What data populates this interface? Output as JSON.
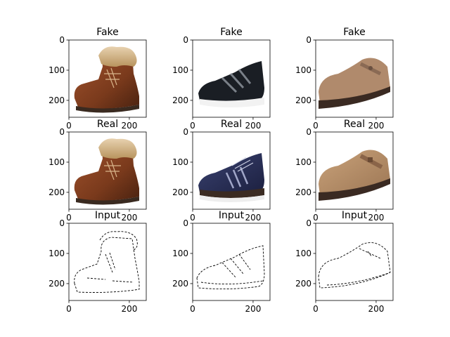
{
  "chart_data": [
    {
      "type": "image",
      "title": "Fake",
      "subject": "brown leather boot with fur collar",
      "xticks": [
        0,
        200
      ],
      "yticks": [
        0,
        100,
        200
      ],
      "xlim": [
        0,
        256
      ],
      "ylim": [
        256,
        0
      ]
    },
    {
      "type": "image",
      "title": "Fake",
      "subject": "black athletic sneaker",
      "xticks": [
        0,
        200
      ],
      "yticks": [
        0,
        100,
        200
      ],
      "xlim": [
        0,
        256
      ],
      "ylim": [
        256,
        0
      ]
    },
    {
      "type": "image",
      "title": "Fake",
      "subject": "tan clog with buckle strap",
      "xticks": [
        0,
        200
      ],
      "yticks": [
        0,
        100,
        200
      ],
      "xlim": [
        0,
        256
      ],
      "ylim": [
        256,
        0
      ]
    },
    {
      "type": "image",
      "title": "Real",
      "subject": "brown leather boot with fur collar",
      "xticks": [
        0,
        200
      ],
      "yticks": [
        0,
        100,
        200
      ],
      "xlim": [
        0,
        256
      ],
      "ylim": [
        256,
        0
      ]
    },
    {
      "type": "image",
      "title": "Real",
      "subject": "navy athletic sneaker",
      "xticks": [
        0,
        200
      ],
      "yticks": [
        0,
        100,
        200
      ],
      "xlim": [
        0,
        256
      ],
      "ylim": [
        256,
        0
      ]
    },
    {
      "type": "image",
      "title": "Real",
      "subject": "tan suede clog with buckle strap",
      "xticks": [
        0,
        200
      ],
      "yticks": [
        0,
        100,
        200
      ],
      "xlim": [
        0,
        256
      ],
      "ylim": [
        256,
        0
      ]
    },
    {
      "type": "image",
      "title": "Input",
      "subject": "edge sketch of boot",
      "xticks": [
        0,
        200
      ],
      "yticks": [
        0,
        100,
        200
      ],
      "xlim": [
        0,
        256
      ],
      "ylim": [
        256,
        0
      ]
    },
    {
      "type": "image",
      "title": "Input",
      "subject": "edge sketch of sneaker",
      "xticks": [
        0,
        200
      ],
      "yticks": [
        0,
        100,
        200
      ],
      "xlim": [
        0,
        256
      ],
      "ylim": [
        256,
        0
      ]
    },
    {
      "type": "image",
      "title": "Input",
      "subject": "edge sketch of clog",
      "xticks": [
        0,
        200
      ],
      "yticks": [
        0,
        100,
        200
      ],
      "xlim": [
        0,
        256
      ],
      "ylim": [
        256,
        0
      ]
    }
  ]
}
